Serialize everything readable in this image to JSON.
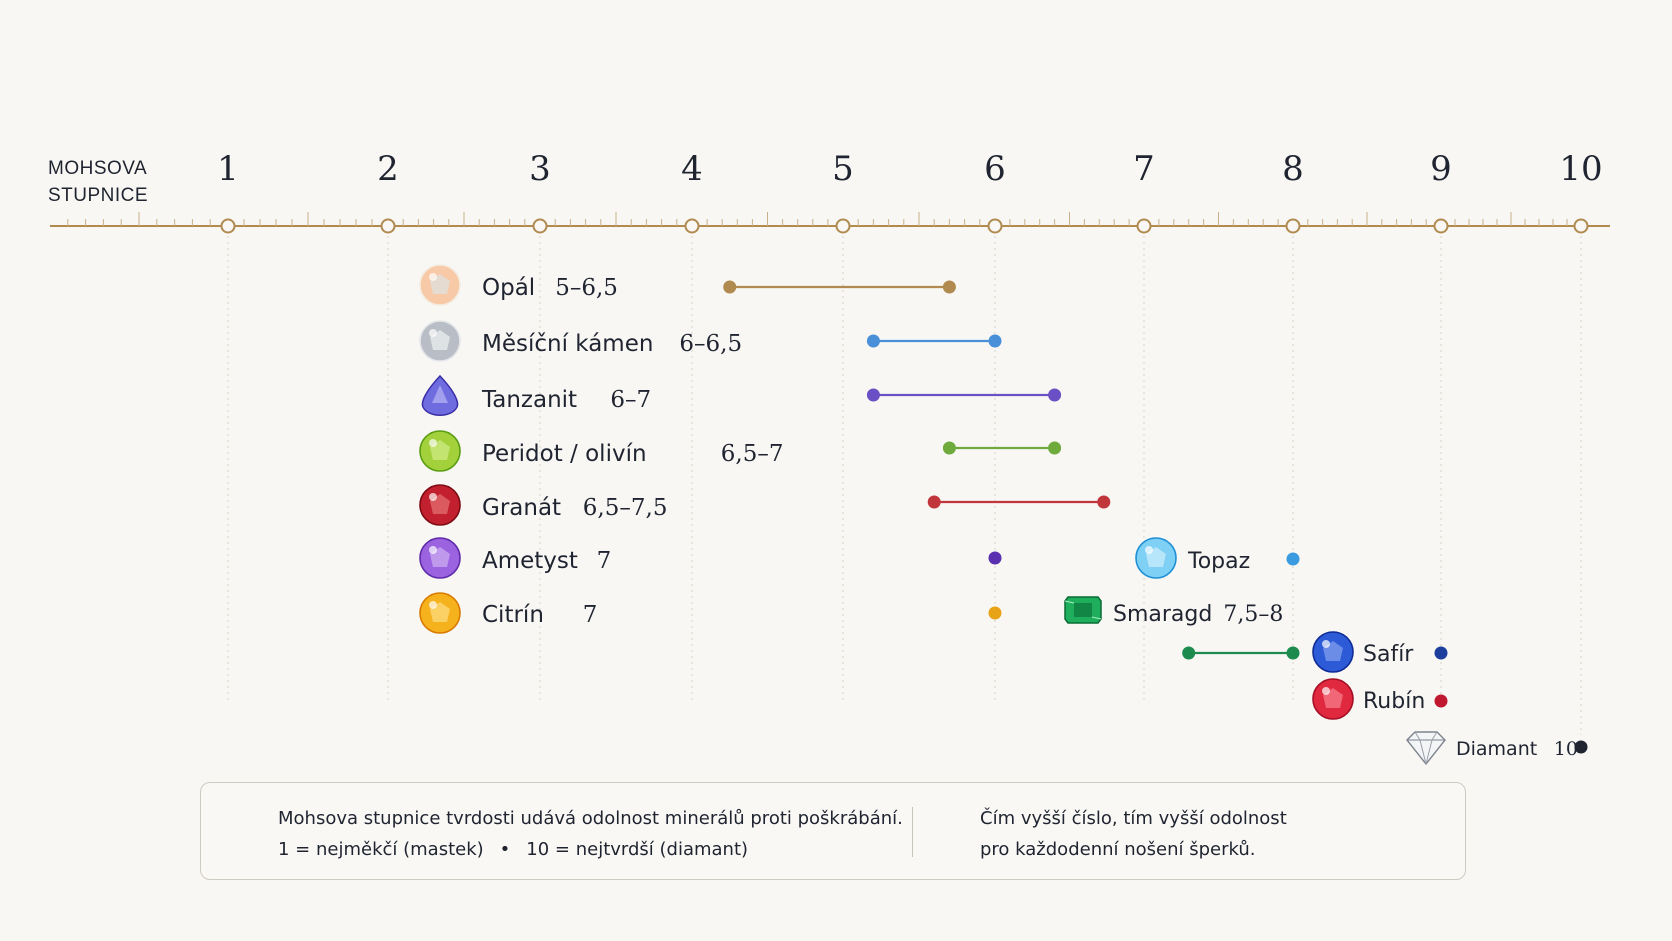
{
  "scale": {
    "title_line1": "MOHSOVA",
    "title_line2": "STUPNICE",
    "ticks": [
      "1",
      "2",
      "3",
      "4",
      "5",
      "6",
      "7",
      "8",
      "9",
      "10"
    ],
    "axis_color": "#b08a4f"
  },
  "minerals": [
    {
      "name": "Opál",
      "hardness": "5–6,5",
      "range": [
        4.25,
        5.7
      ],
      "color": "#b08a4f",
      "icon": "opal-gem-icon",
      "gem_colors": [
        "#f3ecde",
        "#f7c9a6",
        "#d7e9f2"
      ]
    },
    {
      "name": "Měsíční kámen",
      "hardness": "6–6,5",
      "range": [
        5.2,
        6.0
      ],
      "color": "#4a90d9",
      "icon": "moonstone-gem-icon",
      "gem_colors": [
        "#e4e6ea",
        "#b9bec6",
        "#ffffff"
      ]
    },
    {
      "name": "Tanzanit",
      "hardness": "6–7",
      "range": [
        5.2,
        6.4
      ],
      "color": "#6b4fc4",
      "icon": "tanzanite-gem-icon",
      "gem_colors": [
        "#3b2fa8",
        "#6f6ce0",
        "#c4c3f5"
      ]
    },
    {
      "name": "Peridot / olivín",
      "hardness": "6,5–7",
      "range": [
        5.7,
        6.4
      ],
      "color": "#6faa3c",
      "icon": "peridot-gem-icon",
      "gem_colors": [
        "#5a9c12",
        "#a3d13b",
        "#e0f4a0"
      ]
    },
    {
      "name": "Granát",
      "hardness": "6,5–7,5",
      "range": [
        5.6,
        6.73
      ],
      "color": "#c0363a",
      "icon": "garnet-gem-icon",
      "gem_colors": [
        "#7d0b14",
        "#c2202e",
        "#f08a8a"
      ]
    },
    {
      "name": "Ametyst",
      "hardness": "7",
      "range": [
        6.0,
        6.0
      ],
      "color": "#5a2fb0",
      "icon": "amethyst-gem-icon",
      "gem_colors": [
        "#5e2aa8",
        "#9b63e0",
        "#dcc6f5"
      ]
    },
    {
      "name": "Citrín",
      "hardness": "7",
      "range": [
        6.0,
        6.0
      ],
      "color": "#e8a317",
      "icon": "citrine-gem-icon",
      "gem_colors": [
        "#d77a00",
        "#f6b21c",
        "#ffe9a0"
      ]
    },
    {
      "name": "Topaz",
      "hardness": "",
      "range": [
        8.0,
        8.0
      ],
      "color": "#3b9be0",
      "icon": "topaz-gem-icon",
      "gem_colors": [
        "#1f8fd6",
        "#7ed0f5",
        "#e5f7ff"
      ]
    },
    {
      "name": "Smaragd",
      "hardness": "7,5–8",
      "range": [
        7.3,
        8.0
      ],
      "color": "#1d8a4e",
      "icon": "emerald-gem-icon",
      "gem_colors": [
        "#0a6b35",
        "#1fae5c",
        "#a6f0c3"
      ]
    },
    {
      "name": "Safír",
      "hardness": "",
      "range": [
        9.0,
        9.0
      ],
      "color": "#1c3f9e",
      "icon": "sapphire-gem-icon",
      "gem_colors": [
        "#0f2c96",
        "#2d5ad6",
        "#9fb6f5"
      ]
    },
    {
      "name": "Rubín",
      "hardness": "",
      "range": [
        9.0,
        9.0
      ],
      "color": "#c0182f",
      "icon": "ruby-gem-icon",
      "gem_colors": [
        "#a50f25",
        "#e0283f",
        "#ff9aa5"
      ]
    },
    {
      "name": "Diamant",
      "hardness": "10",
      "range": [
        10.0,
        10.0
      ],
      "color": "#1f2430",
      "icon": "diamond-gem-icon",
      "gem_colors": [
        "#ffffff",
        "#cfd3d9",
        "#8c929c"
      ]
    }
  ],
  "info": {
    "line1": "Mohsova stupnice tvrdosti udává odolnost minerálů proti poškrábání.",
    "line2a": "1 = nejměkčí (mastek)",
    "separator": "•",
    "line2b": "10 = nejtvrdší (diamant)",
    "line3": "Čím vyšší číslo, tím vyšší odolnost",
    "line4": "pro každodenní nošení šperků."
  }
}
